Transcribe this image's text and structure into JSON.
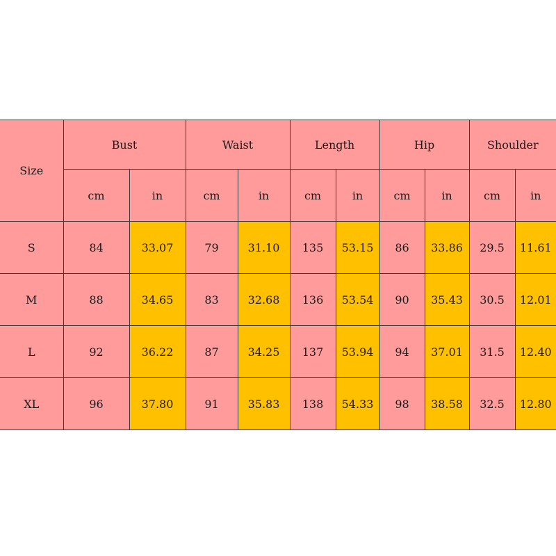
{
  "table": {
    "size_header": "Size",
    "measurements": [
      {
        "label": "Bust",
        "units": [
          "cm",
          "in"
        ]
      },
      {
        "label": "Waist",
        "units": [
          "cm",
          "in"
        ]
      },
      {
        "label": "Length",
        "units": [
          "cm",
          "in"
        ]
      },
      {
        "label": "Hip",
        "units": [
          "cm",
          "in"
        ]
      },
      {
        "label": "Shoulder",
        "units": [
          "cm",
          "in"
        ]
      }
    ],
    "rows": [
      {
        "size": "S",
        "values": [
          "84",
          "33.07",
          "79",
          "31.10",
          "135",
          "53.15",
          "86",
          "33.86",
          "29.5",
          "11.61"
        ]
      },
      {
        "size": "M",
        "values": [
          "88",
          "34.65",
          "83",
          "32.68",
          "136",
          "53.54",
          "90",
          "35.43",
          "30.5",
          "12.01"
        ]
      },
      {
        "size": "L",
        "values": [
          "92",
          "36.22",
          "87",
          "34.25",
          "137",
          "53.94",
          "94",
          "37.01",
          "31.5",
          "12.40"
        ]
      },
      {
        "size": "XL",
        "values": [
          "96",
          "37.80",
          "91",
          "35.83",
          "138",
          "54.33",
          "98",
          "38.58",
          "32.5",
          "12.80"
        ]
      }
    ]
  },
  "colors": {
    "header_fill": "#ff9b9b",
    "cm_fill": "#ff9b9b",
    "inch_fill": "#ffc000",
    "border": "#3a3a3a"
  }
}
